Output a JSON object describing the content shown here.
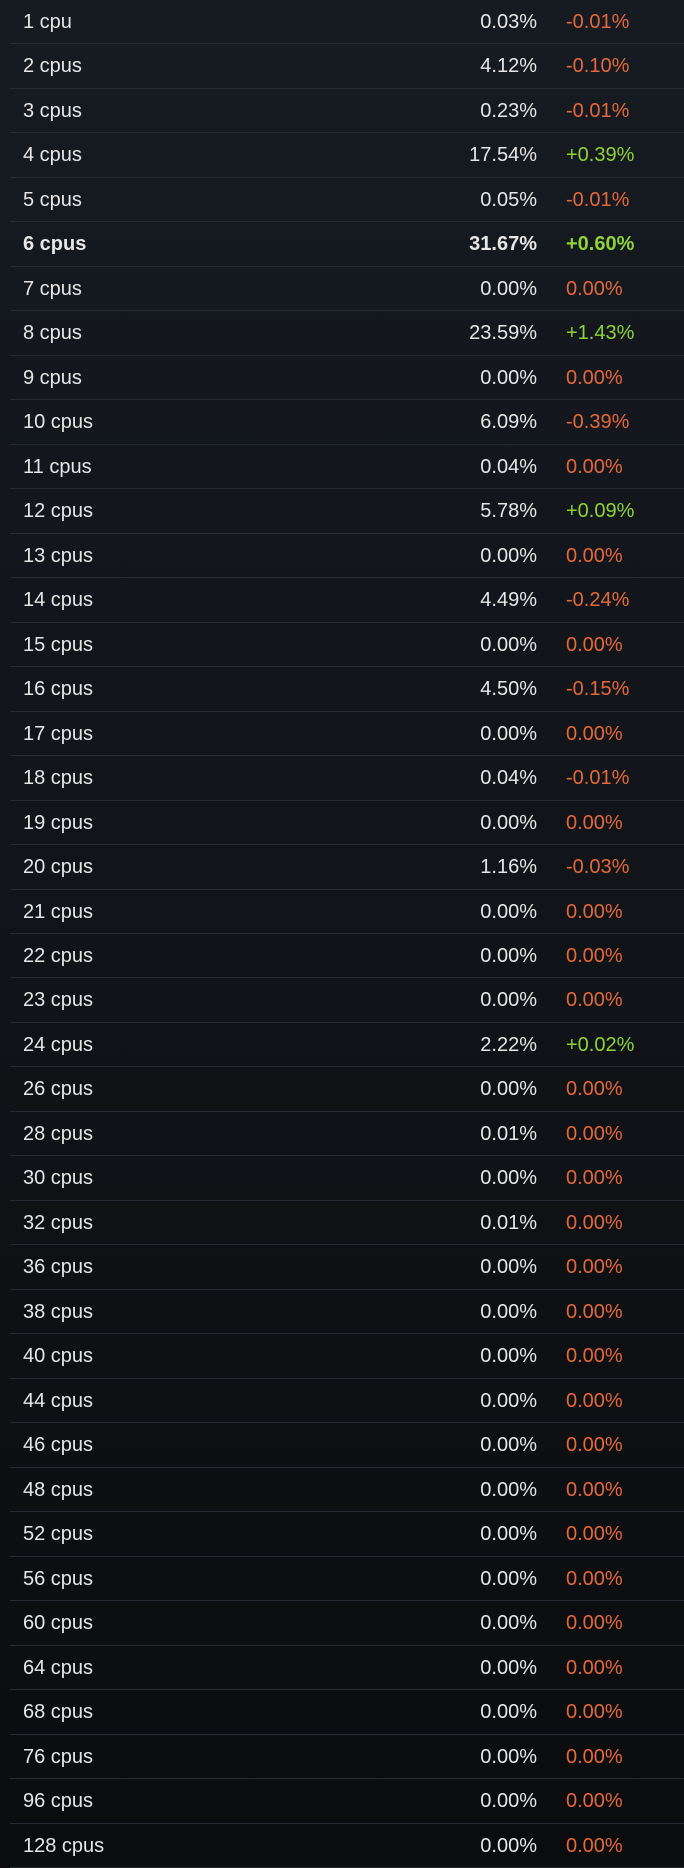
{
  "table": {
    "rows": [
      [
        "1 cpu",
        "0.03%",
        "-0.01%"
      ],
      [
        "2 cpus",
        "4.12%",
        "-0.10%"
      ],
      [
        "3 cpus",
        "0.23%",
        "-0.01%"
      ],
      [
        "4 cpus",
        "17.54%",
        "+0.39%"
      ],
      [
        "5 cpus",
        "0.05%",
        "-0.01%"
      ],
      [
        "6 cpus",
        "31.67%",
        "+0.60%"
      ],
      [
        "7 cpus",
        "0.00%",
        "0.00%"
      ],
      [
        "8 cpus",
        "23.59%",
        "+1.43%"
      ],
      [
        "9 cpus",
        "0.00%",
        "0.00%"
      ],
      [
        "10 cpus",
        "6.09%",
        "-0.39%"
      ],
      [
        "11 cpus",
        "0.04%",
        "0.00%"
      ],
      [
        "12 cpus",
        "5.78%",
        "+0.09%"
      ],
      [
        "13 cpus",
        "0.00%",
        "0.00%"
      ],
      [
        "14 cpus",
        "4.49%",
        "-0.24%"
      ],
      [
        "15 cpus",
        "0.00%",
        "0.00%"
      ],
      [
        "16 cpus",
        "4.50%",
        "-0.15%"
      ],
      [
        "17 cpus",
        "0.00%",
        "0.00%"
      ],
      [
        "18 cpus",
        "0.04%",
        "-0.01%"
      ],
      [
        "19 cpus",
        "0.00%",
        "0.00%"
      ],
      [
        "20 cpus",
        "1.16%",
        "-0.03%"
      ],
      [
        "21 cpus",
        "0.00%",
        "0.00%"
      ],
      [
        "22 cpus",
        "0.00%",
        "0.00%"
      ],
      [
        "23 cpus",
        "0.00%",
        "0.00%"
      ],
      [
        "24 cpus",
        "2.22%",
        "+0.02%"
      ],
      [
        "26 cpus",
        "0.00%",
        "0.00%"
      ],
      [
        "28 cpus",
        "0.01%",
        "0.00%"
      ],
      [
        "30 cpus",
        "0.00%",
        "0.00%"
      ],
      [
        "32 cpus",
        "0.01%",
        "0.00%"
      ],
      [
        "36 cpus",
        "0.00%",
        "0.00%"
      ],
      [
        "38 cpus",
        "0.00%",
        "0.00%"
      ],
      [
        "40 cpus",
        "0.00%",
        "0.00%"
      ],
      [
        "44 cpus",
        "0.00%",
        "0.00%"
      ],
      [
        "46 cpus",
        "0.00%",
        "0.00%"
      ],
      [
        "48 cpus",
        "0.00%",
        "0.00%"
      ],
      [
        "52 cpus",
        "0.00%",
        "0.00%"
      ],
      [
        "56 cpus",
        "0.00%",
        "0.00%"
      ],
      [
        "60 cpus",
        "0.00%",
        "0.00%"
      ],
      [
        "64 cpus",
        "0.00%",
        "0.00%"
      ],
      [
        "68 cpus",
        "0.00%",
        "0.00%"
      ],
      [
        "76 cpus",
        "0.00%",
        "0.00%"
      ],
      [
        "96 cpus",
        "0.00%",
        "0.00%"
      ],
      [
        "128 cpus",
        "0.00%",
        "0.00%"
      ]
    ],
    "bold_rows": [
      5
    ]
  }
}
